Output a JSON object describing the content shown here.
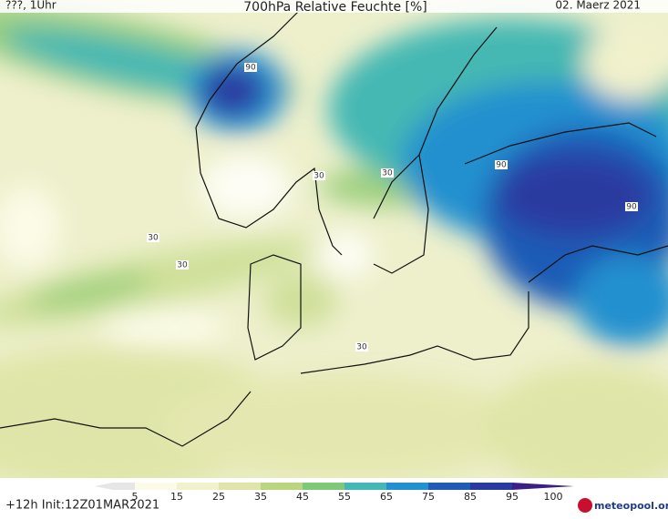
{
  "header": {
    "left": "???, 1Uhr",
    "title": "700hPa Relative Feuchte [%]",
    "date": "02. Maerz 2021"
  },
  "map": {
    "contour_labels": [
      "30",
      "30",
      "30",
      "30",
      "30",
      "90",
      "90",
      "90"
    ]
  },
  "colorbar": {
    "labels": [
      "5",
      "15",
      "25",
      "35",
      "45",
      "55",
      "65",
      "75",
      "85",
      "95",
      "100"
    ],
    "colors": [
      "#e6e6e6",
      "#fbfbe8",
      "#f1f1cc",
      "#dfe5a8",
      "#b9d67e",
      "#7dc979",
      "#45b8b3",
      "#2390cf",
      "#1f5cb6",
      "#2a3aa0",
      "#3b1f88"
    ]
  },
  "footer": {
    "run": "+12h Init:12Z01MAR2021",
    "logo": "meteopool.org"
  }
}
